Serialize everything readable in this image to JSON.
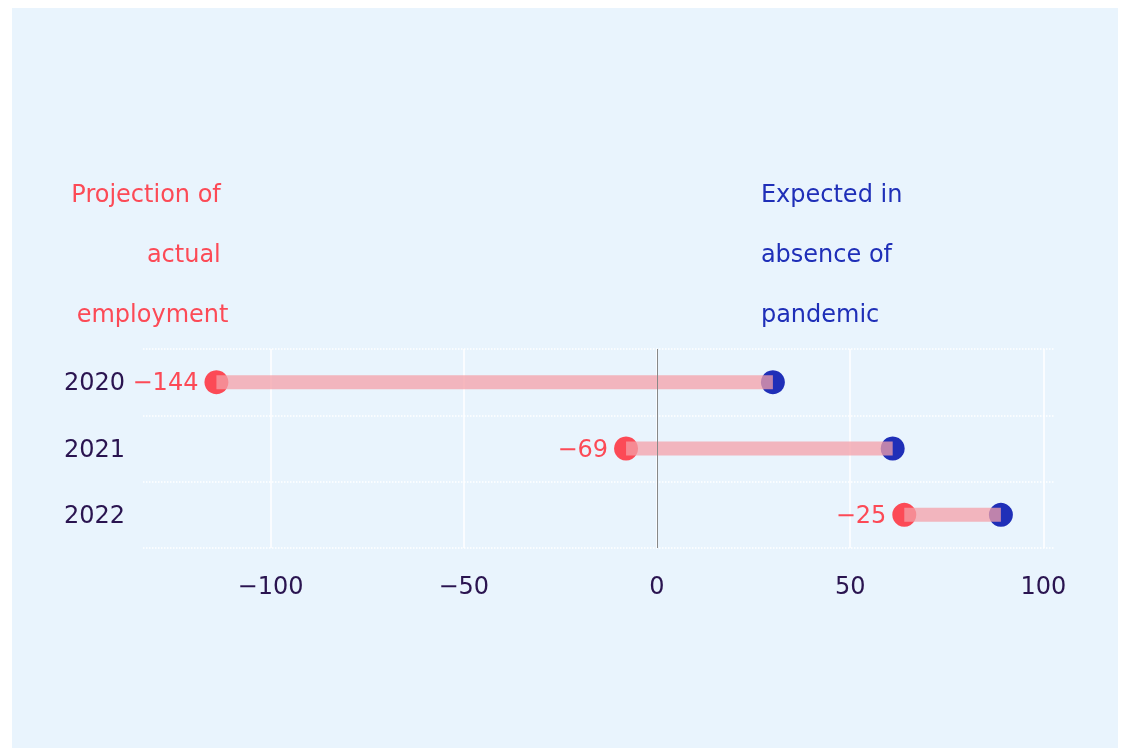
{
  "chart_data": {
    "type": "bar",
    "orientation": "horizontal",
    "categories": [
      "2020",
      "2021",
      "2022"
    ],
    "series": [
      {
        "color": "#f4a0a8",
        "base": [
          30,
          61,
          89
        ],
        "values": [
          -144,
          -69,
          -25
        ],
        "value_labels": [
          "−144",
          "−69",
          "−25"
        ]
      },
      {
        "type": "scatter",
        "name": "Projection of actual employment",
        "color": "#fc4a56",
        "values": [
          -114,
          -8,
          64
        ]
      },
      {
        "type": "scatter",
        "name": "Expected in absence of pandemic",
        "color": "#1f2fb8",
        "values": [
          30,
          61,
          89
        ]
      }
    ],
    "xlim": [
      -133,
      103
    ],
    "xticks": [
      {
        "value": -100,
        "label": "−100"
      },
      {
        "value": -50,
        "label": "−50"
      },
      0,
      50,
      100
    ],
    "grid": true,
    "marker": "circle",
    "ref_lines": [
      {
        "axis": "x",
        "value": 0,
        "color": "#888888"
      }
    ]
  }
}
